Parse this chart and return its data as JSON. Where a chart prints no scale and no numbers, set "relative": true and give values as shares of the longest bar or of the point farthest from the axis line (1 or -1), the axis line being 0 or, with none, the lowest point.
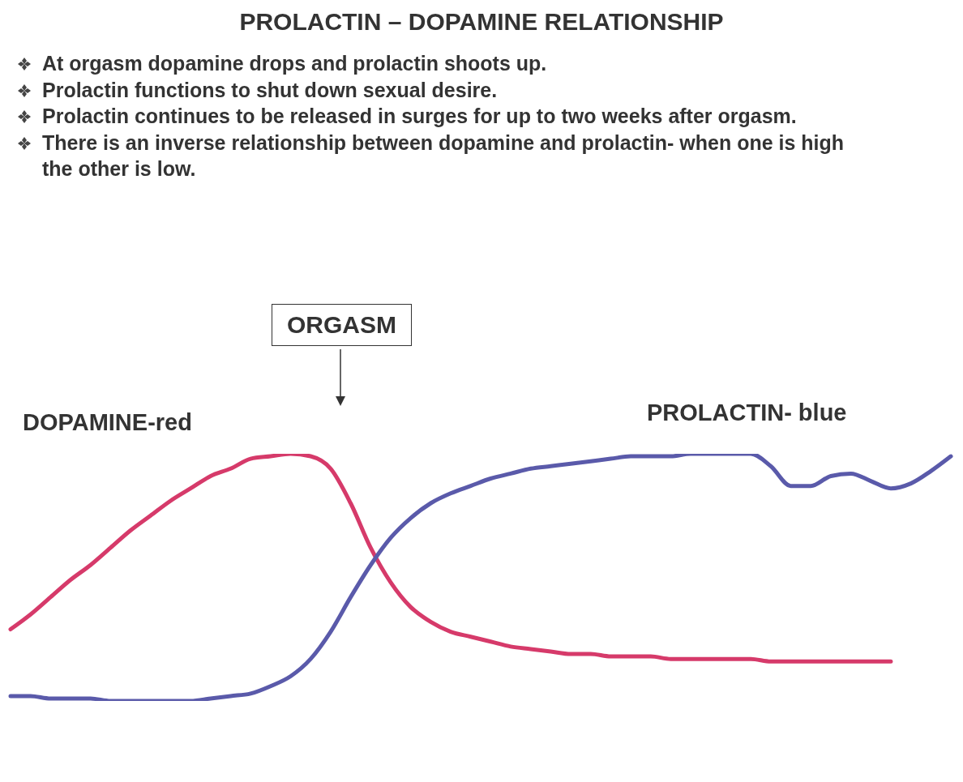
{
  "chart_data": {
    "type": "line",
    "title": "PROLACTIN – DOPAMINE RELATIONSHIP",
    "relative": true,
    "annotations": [
      "At orgasm dopamine drops and prolactin shoots up.",
      "Prolactin functions to shut down sexual desire.",
      "Prolactin continues to be released in surges for up to two weeks after orgasm.",
      "There is an inverse relationship between dopamine and prolactin- when one is high the other is low.",
      "ORGASM"
    ],
    "categories": [
      null,
      null,
      null,
      null,
      null,
      null,
      null,
      null,
      null,
      null,
      null,
      null,
      null,
      null,
      null,
      null,
      null,
      null,
      null,
      null,
      null,
      null,
      null,
      null,
      null,
      null,
      null,
      null,
      null,
      null,
      null,
      null,
      null,
      null,
      null,
      null,
      null,
      null,
      null,
      null,
      null,
      null,
      null,
      null,
      null,
      null,
      null,
      null
    ],
    "series": [
      {
        "name": "DOPAMINE-red",
        "color": "#d63a6a",
        "values": [
          0.29,
          0.35,
          0.42,
          0.49,
          0.55,
          0.62,
          0.69,
          0.75,
          0.81,
          0.86,
          0.91,
          0.94,
          0.98,
          0.99,
          1,
          0.99,
          0.94,
          0.8,
          0.62,
          0.48,
          0.38,
          0.32,
          0.28,
          0.26,
          0.24,
          0.22,
          0.21,
          0.2,
          0.19,
          0.19,
          0.18,
          0.18,
          0.18,
          0.17,
          0.17,
          0.17,
          0.17,
          0.17,
          0.16,
          0.16,
          0.16,
          0.16,
          0.16,
          0.16,
          0.16,
          null,
          null,
          null
        ]
      },
      {
        "name": "PROLACTIN- blue",
        "color": "#5a5aaa",
        "values": [
          0.02,
          0.02,
          0.01,
          0.01,
          0.01,
          0,
          0,
          0,
          0,
          0,
          0.01,
          0.02,
          0.03,
          0.06,
          0.1,
          0.17,
          0.28,
          0.42,
          0.55,
          0.66,
          0.74,
          0.8,
          0.84,
          0.87,
          0.9,
          0.92,
          0.94,
          0.95,
          0.96,
          0.97,
          0.98,
          0.99,
          0.99,
          0.99,
          1,
          1,
          1,
          1,
          0.95,
          0.87,
          0.87,
          0.91,
          0.92,
          0.89,
          0.86,
          0.88,
          0.93,
          0.99
        ]
      }
    ]
  }
}
